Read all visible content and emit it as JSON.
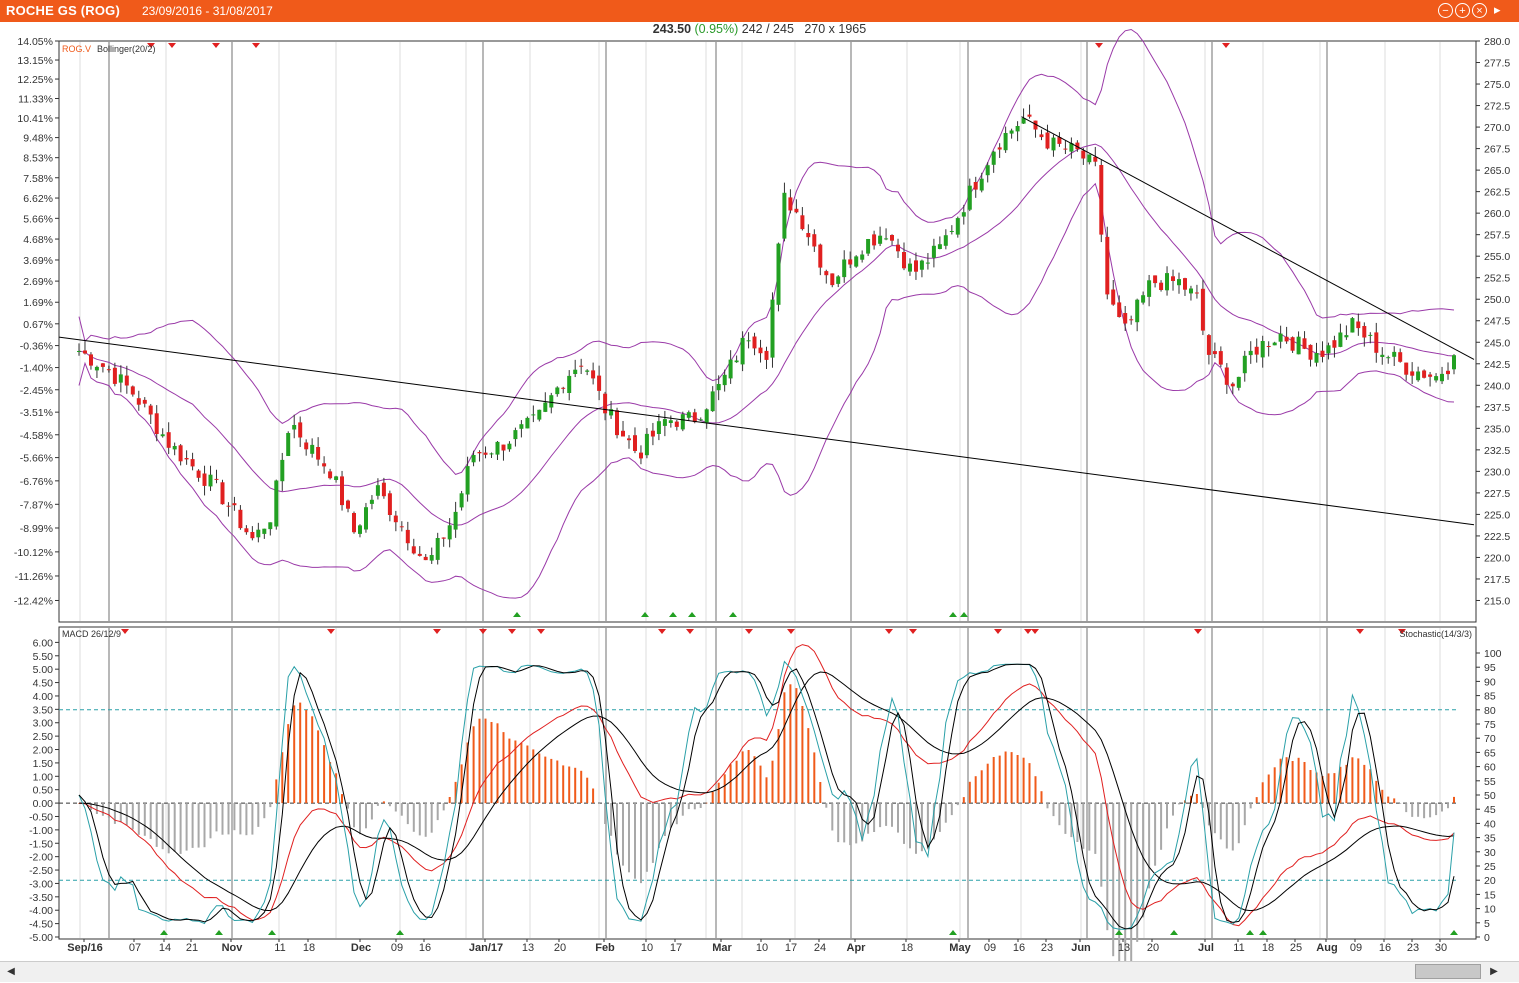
{
  "window": {
    "title": "ROCHE GS (ROG)",
    "date_range": "23/09/2016 - 31/08/2017",
    "buttons": {
      "minimize": "−",
      "restore": "+",
      "close": "×",
      "more": "▸"
    }
  },
  "quote": {
    "price": "243.50",
    "change": "(0.95%)",
    "bid_ask": "242 / 245",
    "size": "270 x 1965"
  },
  "colors": {
    "accent": "#f05a1a",
    "bollinger": "#9a3aa8",
    "trendline": "#000000",
    "candle_up": "#22a022",
    "candle_down": "#e02020",
    "macd_hist_pos": "#f05a1a",
    "macd_hist_neg": "#a8a8a8",
    "macd_signal": "#e02020",
    "stoch_k": "#2aa0a8",
    "stoch_d": "#000000",
    "grid": "#c8c8c8",
    "signal_up": "#22a022",
    "signal_down": "#e02020"
  },
  "chart_data": [
    {
      "type": "candlestick",
      "legend": [
        "ROG.V",
        "Bollinger(20/2)"
      ],
      "ylim": [
        212.5,
        280.0
      ],
      "y_ticks_right": [
        "280.0",
        "277.5",
        "275.0",
        "272.5",
        "270.0",
        "267.5",
        "265.0",
        "262.5",
        "260.0",
        "257.5",
        "255.0",
        "252.5",
        "250.0",
        "247.5",
        "245.0",
        "242.5",
        "240.0",
        "237.5",
        "235.0",
        "232.5",
        "230.0",
        "227.5",
        "225.0",
        "222.5",
        "220.0",
        "217.5",
        "215.0"
      ],
      "y_ticks_left": [
        "14.05%",
        "13.15%",
        "12.25%",
        "11.33%",
        "10.41%",
        "9.48%",
        "8.53%",
        "7.58%",
        "6.62%",
        "5.66%",
        "4.68%",
        "3.69%",
        "2.69%",
        "1.69%",
        "0.67%",
        "-0.36%",
        "-1.40%",
        "-2.45%",
        "-3.51%",
        "-4.58%",
        "-5.66%",
        "-6.76%",
        "-7.87%",
        "-8.99%",
        "-10.12%",
        "-11.26%",
        "-12.42%"
      ],
      "x_labels": [
        "Sep/16",
        "07",
        "14",
        "21",
        "Nov",
        "11",
        "18",
        "Dec",
        "09",
        "16",
        "Jan/17",
        "13",
        "20",
        "Feb",
        "10",
        "17",
        "Mar",
        "10",
        "17",
        "24",
        "Apr",
        "18",
        "May",
        "09",
        "16",
        "23",
        "Jun",
        "13",
        "20",
        "Jul",
        "11",
        "18",
        "25",
        "Aug",
        "09",
        "16",
        "23",
        "30"
      ],
      "trendlines": [
        {
          "from": {
            "bar": 0,
            "price": 245.6
          },
          "to": {
            "bar": 230,
            "price": 223.8
          }
        },
        {
          "from": {
            "bar": 161,
            "price": 271.2
          },
          "to": {
            "bar": 230,
            "price": 243.0
          }
        }
      ]
    },
    {
      "type": "line",
      "title": "MACD 26/12/9",
      "ylim": [
        -5.0,
        6.5
      ],
      "y_ticks": [
        "6.00",
        "5.50",
        "5.00",
        "4.50",
        "4.00",
        "3.50",
        "3.00",
        "2.50",
        "2.00",
        "1.50",
        "1.00",
        "0.50",
        "0.00",
        "-0.50",
        "-1.00",
        "-1.50",
        "-2.00",
        "-2.50",
        "-3.00",
        "-3.50",
        "-4.00",
        "-4.50",
        "-5.00"
      ],
      "series": [
        "MACD",
        "Signal",
        "Histogram"
      ]
    },
    {
      "type": "line",
      "title": "Stochastic(14/3/3)",
      "ylim": [
        0,
        100
      ],
      "y_ticks": [
        "100",
        "95",
        "90",
        "85",
        "80",
        "75",
        "70",
        "65",
        "60",
        "55",
        "50",
        "45",
        "40",
        "35",
        "30",
        "25",
        "20",
        "15",
        "10",
        "5",
        "0"
      ],
      "levels": [
        80,
        20
      ],
      "series": [
        "%K",
        "%D"
      ]
    }
  ],
  "scrollbar": {
    "left_arrow": "◀",
    "right_arrow": "▶"
  }
}
